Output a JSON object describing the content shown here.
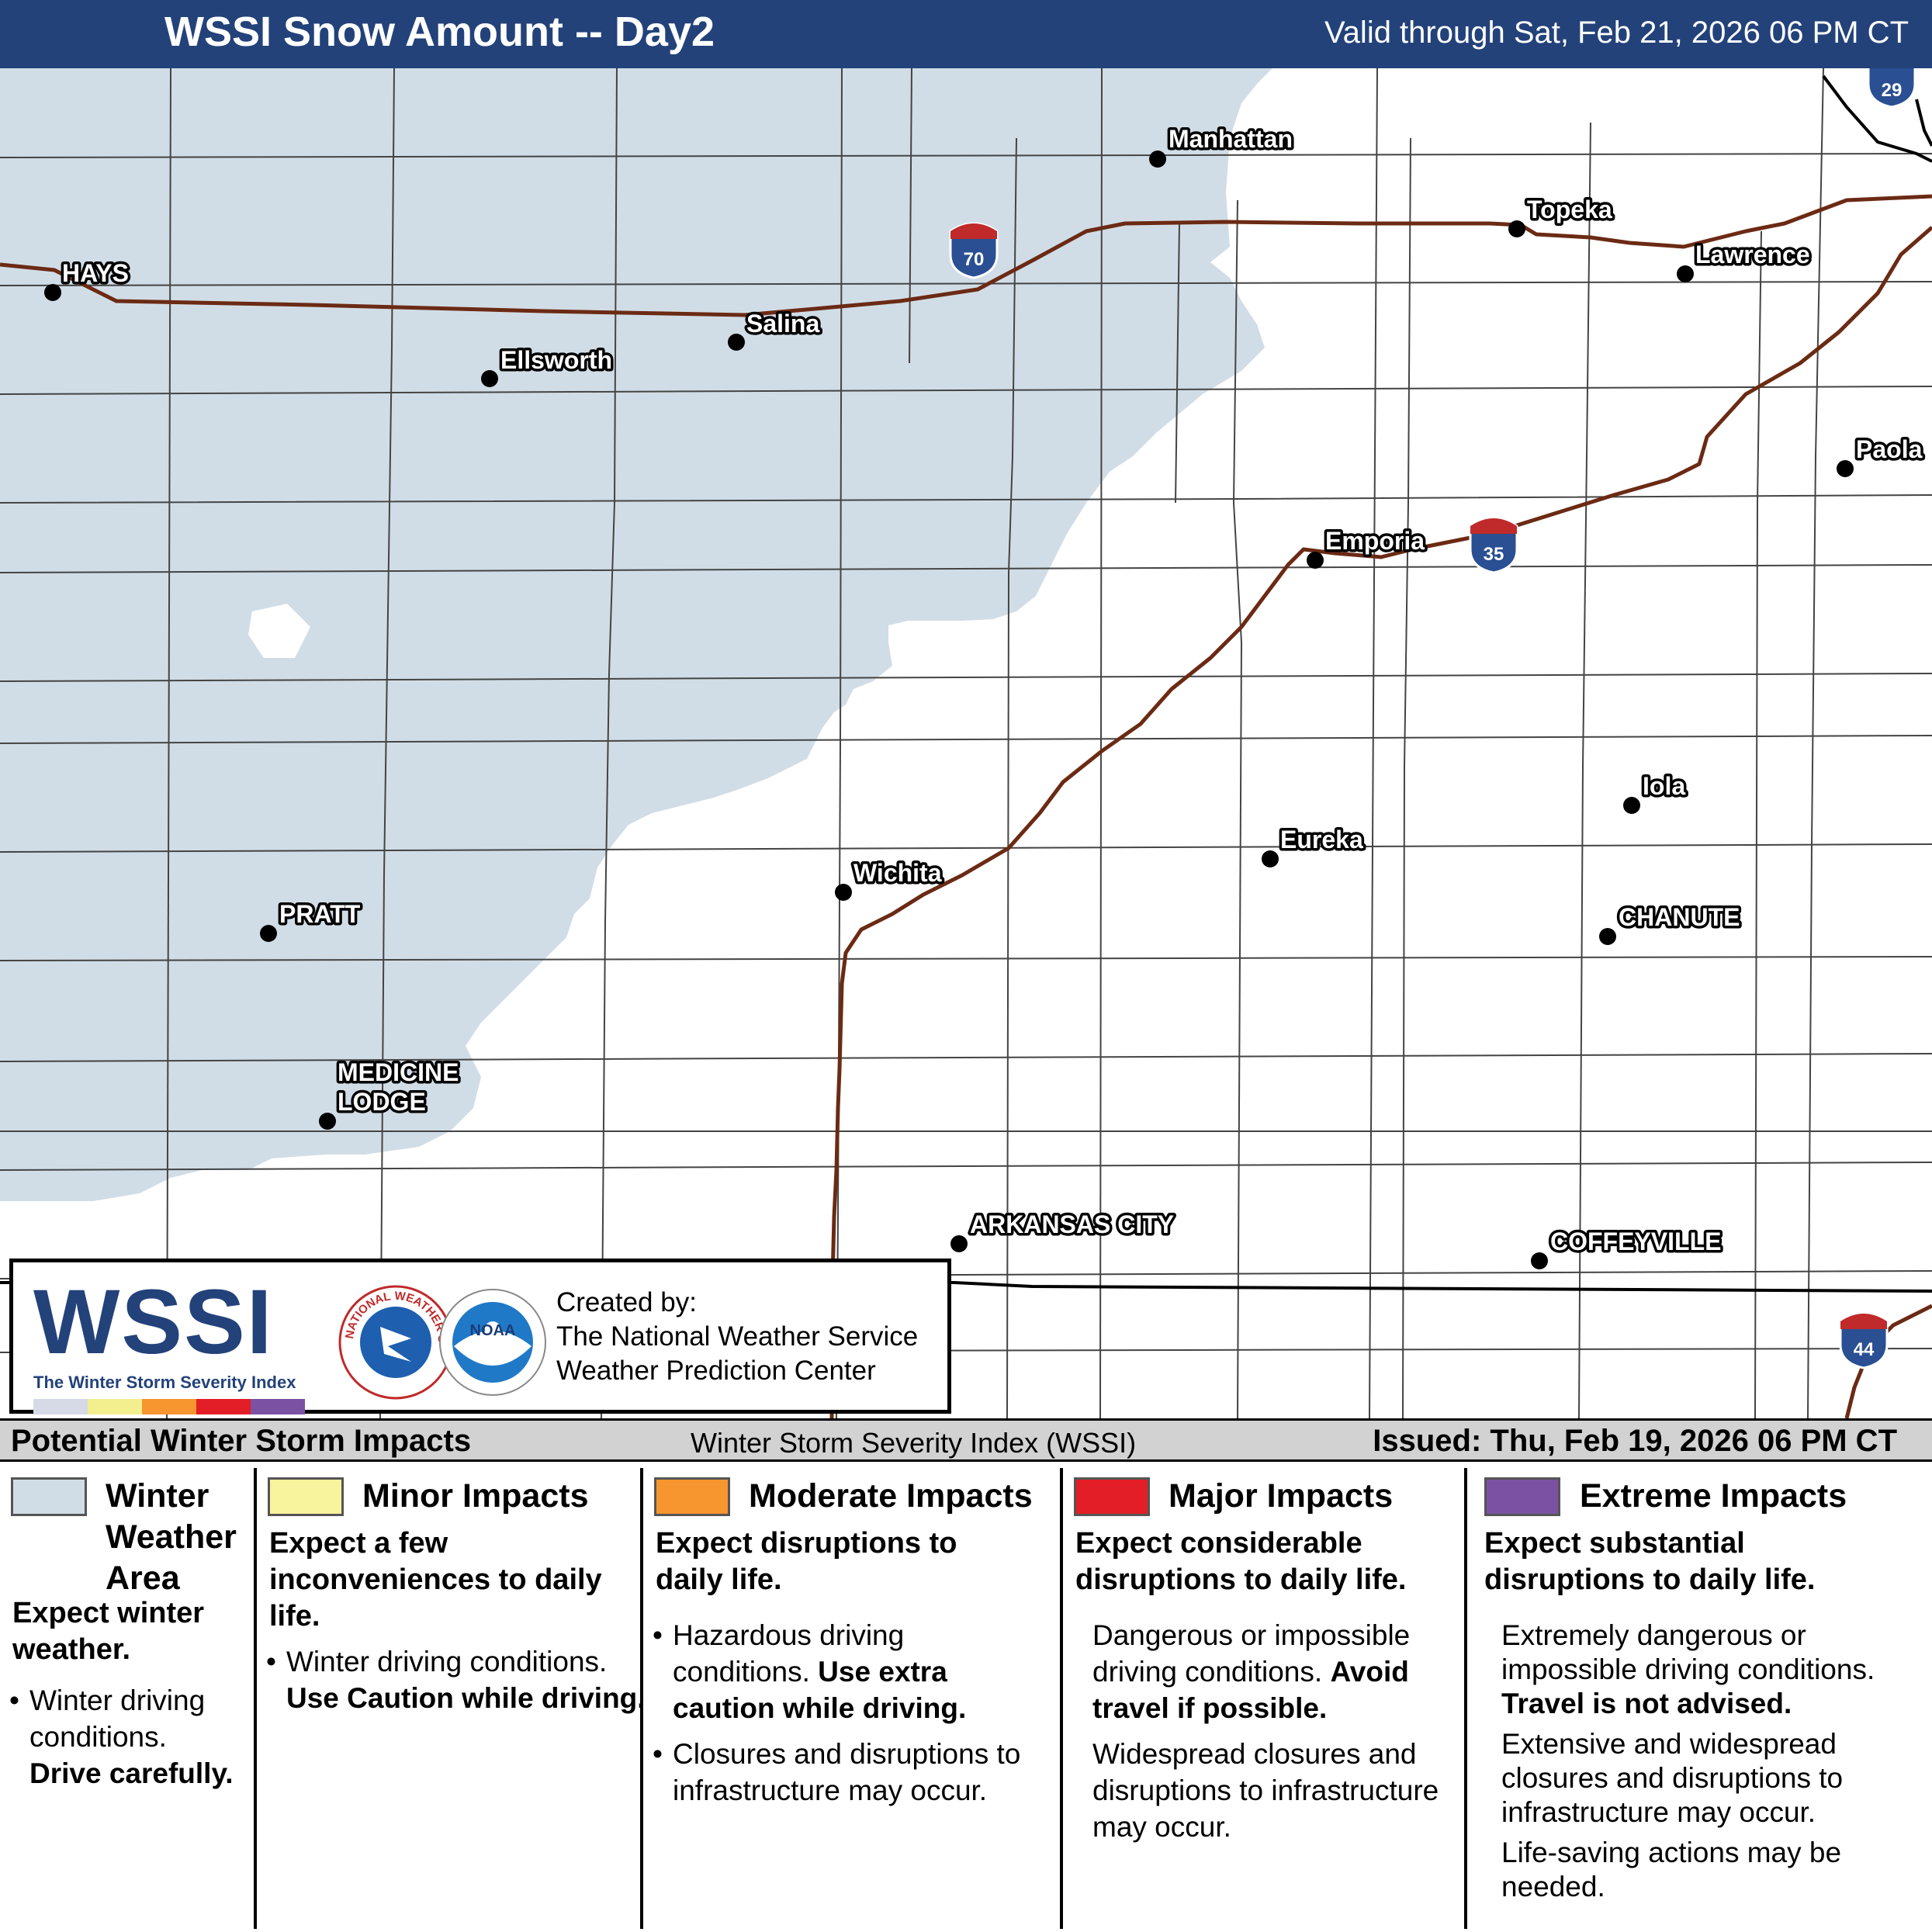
{
  "header": {
    "title": "WSSI Snow Amount -- Day2",
    "valid": "Valid through Sat, Feb 21, 2026 06 PM CT"
  },
  "map": {
    "cities": [
      {
        "name": "HAYS"
      },
      {
        "name": "Ellsworth"
      },
      {
        "name": "Salina"
      },
      {
        "name": "Manhattan"
      },
      {
        "name": "Topeka"
      },
      {
        "name": "Lawrence"
      },
      {
        "name": "Paola"
      },
      {
        "name": "Emporia"
      },
      {
        "name": "Iola"
      },
      {
        "name": "Eureka"
      },
      {
        "name": "Wichita"
      },
      {
        "name": "PRATT"
      },
      {
        "name": "CHANUTE"
      },
      {
        "name": "MEDICINE"
      },
      {
        "name": "LODGE"
      },
      {
        "name": "ARKANSAS CITY"
      },
      {
        "name": "COFFEYVILLE"
      }
    ],
    "interstates": [
      "70",
      "35",
      "29",
      "44"
    ],
    "colors": {
      "winter_weather_area": "#d1dde6",
      "highway": "#6b2a14",
      "county_line": "#444444"
    }
  },
  "credit": {
    "logo_text": "WSSI",
    "logo_subtitle": "The Winter Storm Severity Index",
    "nws_logo_text": "NATIONAL WEATHER SERVICE",
    "noaa_logo_text": "NOAA",
    "created_by": "Created by:",
    "org1": "The National Weather Service",
    "org2": "Weather Prediction Center"
  },
  "legend_header": {
    "left": "Potential Winter Storm Impacts",
    "middle": "Winter Storm Severity Index (WSSI)",
    "right": "Issued: Thu, Feb 19, 2026 06 PM CT"
  },
  "legend": [
    {
      "title": [
        "Winter",
        "Weather",
        "Area"
      ],
      "color": "#d1dde6",
      "desc": "Expect winter weather.",
      "body1": "Winter driving conditions.",
      "body1_bold": "Drive carefully."
    },
    {
      "title": [
        "Minor Impacts"
      ],
      "color": "#f8f39d",
      "desc": "Expect a few inconveniences to daily life.",
      "body1": "Winter driving conditions.",
      "body1_bold": "Use Caution while driving."
    },
    {
      "title": [
        "Moderate Impacts"
      ],
      "color": "#f7952f",
      "desc": "Expect disruptions to daily life.",
      "body1": "Hazardous driving conditions.",
      "body1_bold": "Use extra caution while driving.",
      "body2": "Closures and disruptions to infrastructure may occur."
    },
    {
      "title": [
        "Major Impacts"
      ],
      "color": "#e41e26",
      "desc": "Expect considerable disruptions to daily life.",
      "body1": "Dangerous or impossible driving conditions.",
      "body1_bold": "Avoid travel if possible.",
      "body2": "Widespread closures and disruptions to infrastructure may occur."
    },
    {
      "title": [
        "Extreme Impacts"
      ],
      "color": "#7b52a3",
      "desc": "Expect substantial disruptions to daily life.",
      "body1": "Extremely dangerous or impossible driving conditions.",
      "body1_bold": "Travel is not advised.",
      "body2": "Extensive and widespread closures and disruptions to infrastructure may occur.",
      "body3": "Life-saving actions may be needed."
    }
  ]
}
